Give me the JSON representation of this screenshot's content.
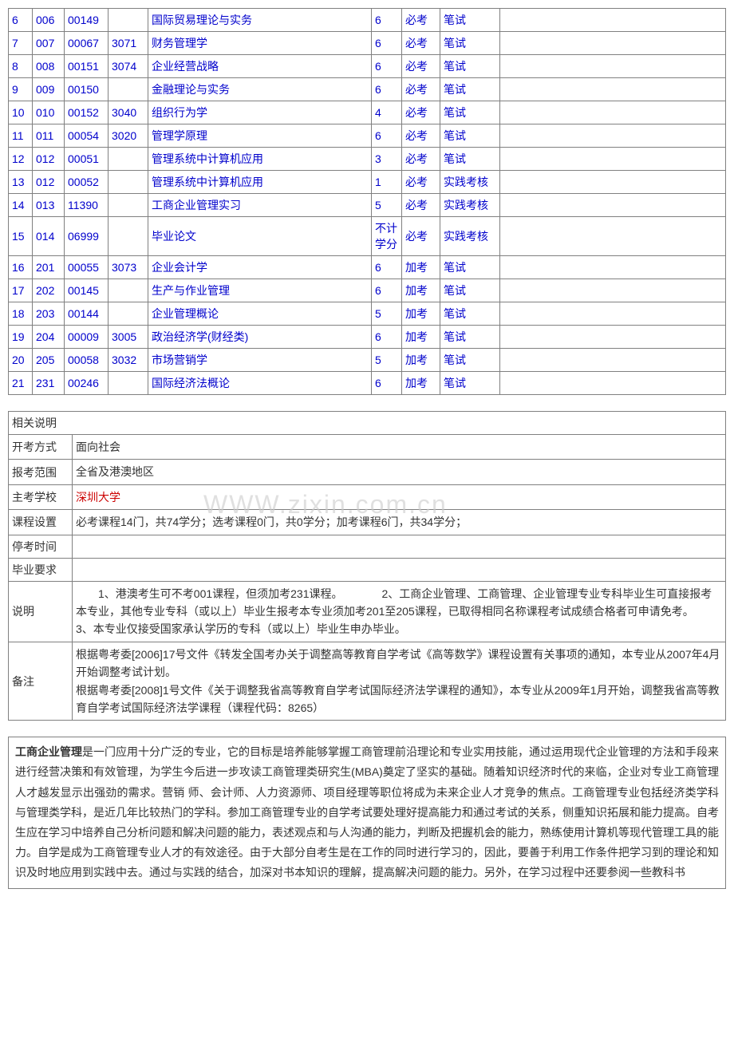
{
  "course_table": {
    "rows": [
      {
        "num": "6",
        "code1": "006",
        "code2": "00149",
        "code3": "",
        "name": "国际贸易理论与实务",
        "credit": "6",
        "type": "必考",
        "exam": "笔试",
        "note": ""
      },
      {
        "num": "7",
        "code1": "007",
        "code2": "00067",
        "code3": "3071",
        "name": "财务管理学",
        "credit": "6",
        "type": "必考",
        "exam": "笔试",
        "note": ""
      },
      {
        "num": "8",
        "code1": "008",
        "code2": "00151",
        "code3": "3074",
        "name": "企业经营战略",
        "credit": "6",
        "type": "必考",
        "exam": "笔试",
        "note": ""
      },
      {
        "num": "9",
        "code1": "009",
        "code2": "00150",
        "code3": "",
        "name": "金融理论与实务",
        "credit": "6",
        "type": "必考",
        "exam": "笔试",
        "note": ""
      },
      {
        "num": "10",
        "code1": "010",
        "code2": "00152",
        "code3": "3040",
        "name": "组织行为学",
        "credit": "4",
        "type": "必考",
        "exam": "笔试",
        "note": ""
      },
      {
        "num": "11",
        "code1": "011",
        "code2": "00054",
        "code3": "3020",
        "name": "管理学原理",
        "credit": "6",
        "type": "必考",
        "exam": "笔试",
        "note": ""
      },
      {
        "num": "12",
        "code1": "012",
        "code2": "00051",
        "code3": "",
        "name": "管理系统中计算机应用",
        "credit": "3",
        "type": "必考",
        "exam": "笔试",
        "note": ""
      },
      {
        "num": "13",
        "code1": "012",
        "code2": "00052",
        "code3": "",
        "name": "管理系统中计算机应用",
        "credit": "1",
        "type": "必考",
        "exam": "实践考核",
        "note": ""
      },
      {
        "num": "14",
        "code1": "013",
        "code2": "11390",
        "code3": "",
        "name": "工商企业管理实习",
        "credit": "5",
        "type": "必考",
        "exam": "实践考核",
        "note": ""
      },
      {
        "num": "15",
        "code1": "014",
        "code2": "06999",
        "code3": "",
        "name": "毕业论文",
        "credit": "不计学分",
        "type": "必考",
        "exam": "实践考核",
        "note": ""
      },
      {
        "num": "16",
        "code1": "201",
        "code2": "00055",
        "code3": "3073",
        "name": "企业会计学",
        "credit": "6",
        "type": "加考",
        "exam": "笔试",
        "note": ""
      },
      {
        "num": "17",
        "code1": "202",
        "code2": "00145",
        "code3": "",
        "name": "生产与作业管理",
        "credit": "6",
        "type": "加考",
        "exam": "笔试",
        "note": ""
      },
      {
        "num": "18",
        "code1": "203",
        "code2": "00144",
        "code3": "",
        "name": "企业管理概论",
        "credit": "5",
        "type": "加考",
        "exam": "笔试",
        "note": ""
      },
      {
        "num": "19",
        "code1": "204",
        "code2": "00009",
        "code3": "3005",
        "name": "政治经济学(财经类)",
        "credit": "6",
        "type": "加考",
        "exam": "笔试",
        "note": ""
      },
      {
        "num": "20",
        "code1": "205",
        "code2": "00058",
        "code3": "3032",
        "name": "市场营销学",
        "credit": "5",
        "type": "加考",
        "exam": "笔试",
        "note": ""
      },
      {
        "num": "21",
        "code1": "231",
        "code2": "00246",
        "code3": "",
        "name": "国际经济法概论",
        "credit": "6",
        "type": "加考",
        "exam": "笔试",
        "note": ""
      }
    ]
  },
  "info_table": {
    "title": "相关说明",
    "rows": [
      {
        "label": "开考方式",
        "content": "面向社会"
      },
      {
        "label": "报考范围",
        "content": "全省及港澳地区"
      },
      {
        "label": "主考学校",
        "content": "深圳大学",
        "red": true
      },
      {
        "label": "课程设置",
        "content": "必考课程14门，共74学分；选考课程0门，共0学分；加考课程6门，共34学分；"
      },
      {
        "label": "停考时间",
        "content": ""
      },
      {
        "label": "毕业要求",
        "content": ""
      },
      {
        "label": "说明",
        "content": "　　1、港澳考生可不考001课程，但须加考231课程。　　　　2、工商企业管理、工商管理、企业管理专业专科毕业生可直接报考本专业，其他专业专科（或以上）毕业生报考本专业须加考201至205课程，已取得相同名称课程考试成绩合格者可申请免考。　　　3、本专业仅接受国家承认学历的专科（或以上）毕业生申办毕业。"
      },
      {
        "label": "备注",
        "content": "根据粤考委[2006]17号文件《转发全国考办关于调整高等教育自学考试《高等数学》课程设置有关事项的通知，本专业从2007年4月开始调整考试计划。\n根据粤考委[2008]1号文件《关于调整我省高等教育自学考试国际经济法学课程的通知》，本专业从2009年1月开始，调整我省高等教育自学考试国际经济法学课程（课程代码：8265）"
      }
    ]
  },
  "description": {
    "bold_prefix": "工商企业管理",
    "text": "是一门应用十分广泛的专业，它的目标是培养能够掌握工商管理前沿理论和专业实用技能，通过运用现代企业管理的方法和手段来进行经营决策和有效管理，为学生今后进一步攻读工商管理类研究生(MBA)奠定了坚实的基础。随着知识经济时代的来临，企业对专业工商管理人才越发显示出强劲的需求。营销 师、会计师、人力资源师、项目经理等职位将成为未来企业人才竞争的焦点。工商管理专业包括经济类学科与管理类学科，是近几年比较热门的学科。参加工商管理专业的自学考试要处理好提高能力和通过考试的关系，侧重知识拓展和能力提高。自考生应在学习中培养自己分析问题和解决问题的能力，表述观点和与人沟通的能力，判断及把握机会的能力，熟练使用计算机等现代管理工具的能力。自学是成为工商管理专业人才的有效途径。由于大部分自考生是在工作的同时进行学习的，因此，要善于利用工作条件把学习到的理论和知识及时地应用到实践中去。通过与实践的结合，加深对书本知识的理解，提高解决问题的能力。另外，在学习过程中还要参阅一些教科书"
  },
  "watermark_text": "WWW.zixin.com.cn"
}
